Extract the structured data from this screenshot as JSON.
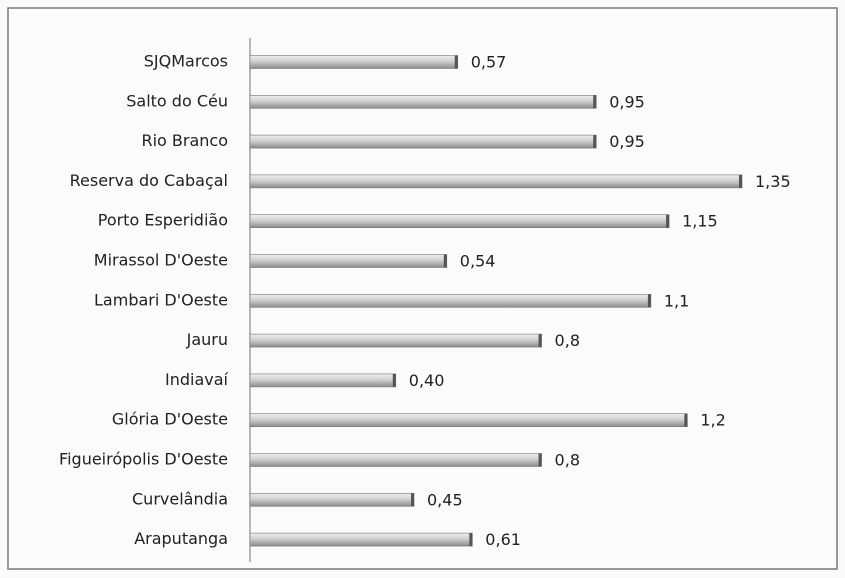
{
  "chart_data": {
    "type": "bar",
    "orientation": "horizontal",
    "categories": [
      "SJQMarcos",
      "Salto do Céu",
      "Rio Branco",
      "Reserva do Cabaçal",
      "Porto Esperidião",
      "Mirassol D'Oeste",
      "Lambari D'Oeste",
      "Jauru",
      "Indiavaí",
      "Glória D'Oeste",
      "Figueirópolis D'Oeste",
      "Curvelândia",
      "Araputanga"
    ],
    "values": [
      0.57,
      0.95,
      0.95,
      1.35,
      1.15,
      0.54,
      1.1,
      0.8,
      0.4,
      1.2,
      0.8,
      0.45,
      0.61
    ],
    "value_labels": [
      "0,57",
      "0,95",
      "0,95",
      "1,35",
      "1,15",
      "0,54",
      "1,1",
      "0,8",
      "0,40",
      "1,2",
      "0,8",
      "0,45",
      "0,61"
    ],
    "color": "#b8b8b8"
  }
}
